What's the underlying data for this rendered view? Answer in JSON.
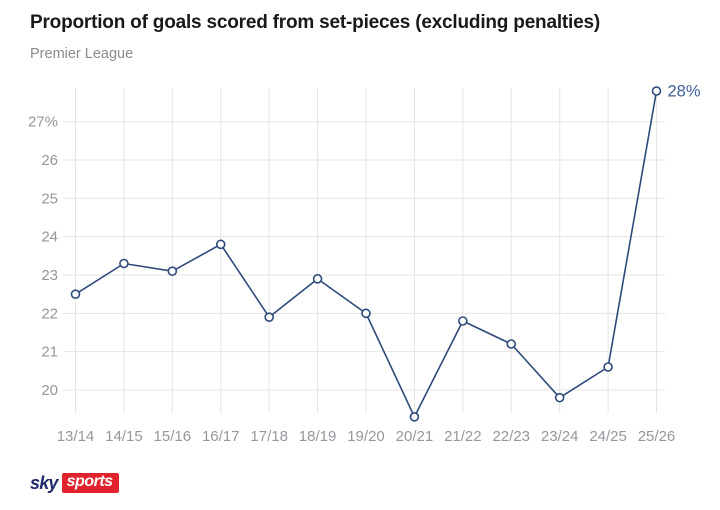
{
  "chart_data": {
    "type": "line",
    "title": "Proportion of goals scored from set-pieces (excluding penalties)",
    "subtitle": "Premier League",
    "categories": [
      "13/14",
      "14/15",
      "15/16",
      "16/17",
      "17/18",
      "18/19",
      "19/20",
      "20/21",
      "21/22",
      "22/23",
      "23/24",
      "24/25",
      "25/26"
    ],
    "values": [
      22.5,
      23.3,
      23.1,
      23.8,
      21.9,
      22.9,
      22.0,
      19.3,
      21.8,
      21.2,
      19.8,
      20.6,
      27.8
    ],
    "xlabel": "",
    "ylabel": "",
    "ylim": [
      19,
      28.3
    ],
    "yticks": [
      {
        "value": 20,
        "label": "20"
      },
      {
        "value": 21,
        "label": "21"
      },
      {
        "value": 22,
        "label": "22"
      },
      {
        "value": 23,
        "label": "23"
      },
      {
        "value": 24,
        "label": "24"
      },
      {
        "value": 25,
        "label": "25"
      },
      {
        "value": 26,
        "label": "26"
      },
      {
        "value": 27,
        "label": "27%"
      }
    ],
    "annotation": {
      "category": "25/26",
      "label": "28%"
    },
    "grid": true,
    "legend": false,
    "line_color": "#2e4a7b",
    "marker_fill": "#ffffff",
    "annotation_color": "#3e5f99",
    "gridline_color": "#e5e5e6",
    "tick_label_color": "#94979d",
    "title_color": "#191919",
    "subtitle_color": "#8b8b8b"
  },
  "footer": {
    "logo": {
      "sky_text": "sky",
      "sports_text": "sports",
      "navy_color": "#1f2a6b",
      "red_color": "#e0232d"
    }
  }
}
